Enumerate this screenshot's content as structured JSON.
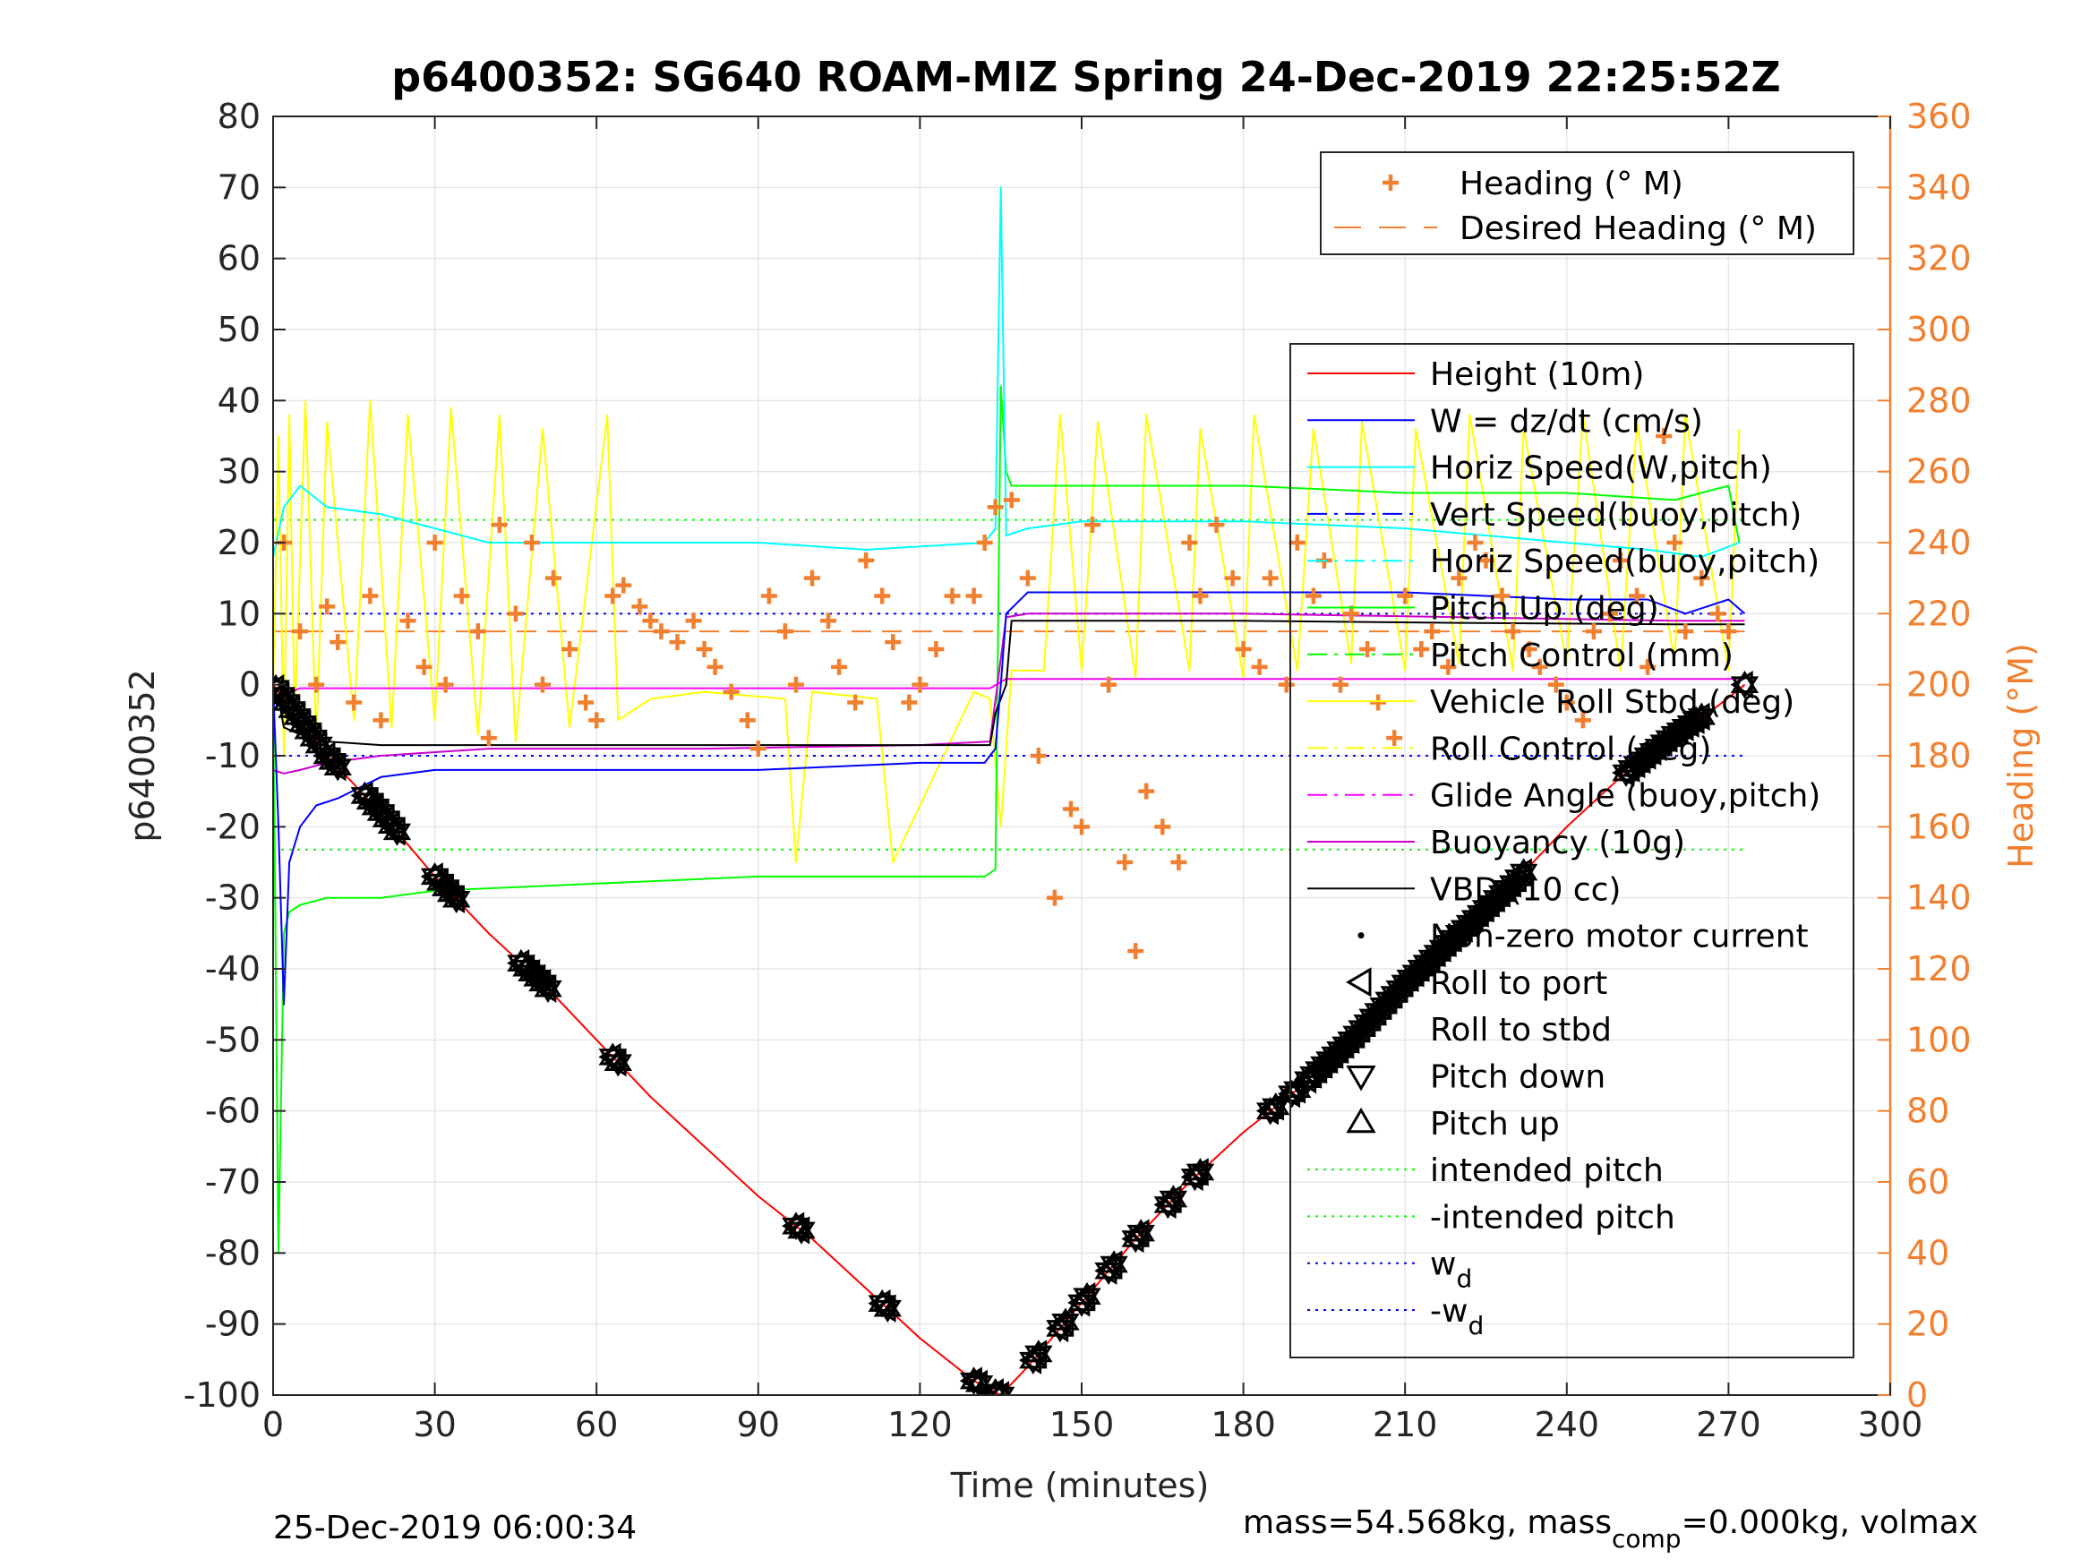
{
  "chart_data": {
    "type": "line",
    "title": "p6400352: SG640 ROAM-MIZ Spring 24-Dec-2019 22:25:52Z",
    "xlabel": "Time (minutes)",
    "ylabel": "p6400352",
    "y2label": "Heading (°M)",
    "xlim": [
      0,
      300
    ],
    "ylim": [
      -100,
      80
    ],
    "y2lim": [
      0,
      360
    ],
    "xticks": [
      0,
      30,
      60,
      90,
      120,
      150,
      180,
      210,
      240,
      270,
      300
    ],
    "yticks": [
      -100,
      -90,
      -80,
      -70,
      -60,
      -50,
      -40,
      -30,
      -20,
      -10,
      0,
      10,
      20,
      30,
      40,
      50,
      60,
      70,
      80
    ],
    "y2ticks": [
      0,
      20,
      40,
      60,
      80,
      100,
      120,
      140,
      160,
      180,
      200,
      220,
      240,
      260,
      280,
      300,
      320,
      340,
      360
    ],
    "grid": true,
    "footer_left": "25-Dec-2019 06:00:34",
    "footer_right_prefix": "mass=54.568kg, mass",
    "footer_right_sub": "comp",
    "footer_right_suffix": "=0.000kg, volmax",
    "colors": {
      "height": "#ff0000",
      "w": "#0000ff",
      "horiz_w": "#00ffff",
      "pitch": "#00ff00",
      "roll": "#ffff00",
      "glide": "#ff00ff",
      "buoy": "#cc00cc",
      "vbd": "#000000",
      "heading": "#f08030",
      "axis_right": "#f08030"
    },
    "legend_heading": [
      {
        "label": "Heading (° M)",
        "marker": "plus",
        "color": "#f08030"
      },
      {
        "label": "Desired Heading (° M)",
        "marker": "dash",
        "color": "#f08030"
      }
    ],
    "legend_main": [
      {
        "label": "Height (10m)",
        "style": "line",
        "color": "#ff0000"
      },
      {
        "label": "W = dz/dt (cm/s)",
        "style": "line",
        "color": "#0000ff"
      },
      {
        "label": "Horiz Speed(W,pitch)",
        "style": "line",
        "color": "#00ffff"
      },
      {
        "label": "Vert Speed(buoy,pitch)",
        "style": "dashdot",
        "color": "#0000ff"
      },
      {
        "label": "Horiz Speed(buoy,pitch)",
        "style": "dashdot",
        "color": "#00ffff"
      },
      {
        "label": "Pitch Up (deg)",
        "style": "line",
        "color": "#00ff00"
      },
      {
        "label": "Pitch Control (mm)",
        "style": "dashdot",
        "color": "#00ff00"
      },
      {
        "label": "Vehicle Roll Stbd (deg)",
        "style": "line",
        "color": "#ffff00"
      },
      {
        "label": "Roll Control (deg)",
        "style": "dashdot",
        "color": "#ffff00"
      },
      {
        "label": "Glide Angle (buoy,pitch)",
        "style": "dashdot",
        "color": "#ff00ff"
      },
      {
        "label": "Buoyancy (10g)",
        "style": "line",
        "color": "#cc00cc"
      },
      {
        "label": "VBD (10 cc)",
        "style": "line",
        "color": "#000000"
      },
      {
        "label": "Non-zero motor current",
        "style": "dot",
        "color": "#000000"
      },
      {
        "label": "Roll to port",
        "style": "tri-left",
        "color": "#000000"
      },
      {
        "label": "Roll to stbd",
        "style": "tri-right",
        "color": "#000000"
      },
      {
        "label": "Pitch down",
        "style": "tri-down",
        "color": "#000000"
      },
      {
        "label": "Pitch up",
        "style": "tri-up",
        "color": "#000000"
      },
      {
        "label": "intended pitch",
        "style": "dotted",
        "color": "#00ff00"
      },
      {
        "label": "-intended pitch",
        "style": "dotted",
        "color": "#00ff00"
      },
      {
        "label": "w",
        "sub": "d",
        "style": "dotted",
        "color": "#0000ff"
      },
      {
        "label": "-w",
        "sub": "d",
        "style": "dotted",
        "color": "#0000ff"
      }
    ],
    "series": [
      {
        "key": "height",
        "x": [
          0,
          2,
          5,
          10,
          20,
          30,
          40,
          50,
          60,
          70,
          80,
          90,
          100,
          110,
          120,
          130,
          135,
          140,
          150,
          160,
          170,
          180,
          190,
          200,
          210,
          220,
          230,
          240,
          250,
          260,
          268,
          273
        ],
        "values": [
          0,
          -2,
          -5,
          -10,
          -18,
          -27,
          -35,
          -42,
          -50,
          -58,
          -65,
          -72,
          -78,
          -85,
          -92,
          -98,
          -100,
          -96,
          -87,
          -78,
          -70,
          -63,
          -57,
          -50,
          -42,
          -35,
          -28,
          -20,
          -13,
          -7,
          -3,
          0
        ]
      },
      {
        "key": "w",
        "x": [
          0,
          1,
          2,
          3,
          5,
          8,
          12,
          20,
          30,
          60,
          90,
          120,
          132,
          134,
          135,
          136,
          140,
          150,
          180,
          210,
          240,
          255,
          262,
          270,
          273
        ],
        "values": [
          0,
          -20,
          -45,
          -25,
          -20,
          -17,
          -16,
          -13,
          -12,
          -12,
          -12,
          -11,
          -11,
          -9,
          0,
          10,
          13,
          13,
          13,
          13,
          12,
          12,
          10,
          12,
          10
        ]
      },
      {
        "key": "horiz_w",
        "x": [
          0,
          2,
          5,
          10,
          20,
          30,
          40,
          60,
          90,
          110,
          132,
          134,
          135,
          136,
          140,
          150,
          180,
          210,
          240,
          255,
          265,
          272
        ],
        "values": [
          18,
          25,
          28,
          25,
          24,
          22,
          20,
          20,
          20,
          19,
          20,
          22,
          70,
          21,
          22,
          23,
          23,
          22,
          20,
          19,
          18,
          20
        ]
      },
      {
        "key": "pitch",
        "x": [
          0,
          1,
          2,
          3,
          5,
          10,
          20,
          30,
          60,
          90,
          120,
          132,
          134,
          135,
          136,
          137,
          140,
          150,
          180,
          210,
          240,
          260,
          270,
          272
        ],
        "values": [
          0,
          -80,
          -35,
          -32,
          -31,
          -30,
          -30,
          -29,
          -28,
          -27,
          -27,
          -27,
          -26,
          42,
          30,
          28,
          28,
          28,
          28,
          27,
          27,
          26,
          28,
          20
        ]
      },
      {
        "key": "vbd",
        "x": [
          0,
          1,
          2,
          5,
          10,
          20,
          40,
          80,
          120,
          133,
          134,
          136,
          137,
          140,
          180,
          220,
          260,
          273
        ],
        "values": [
          0,
          -2,
          -6,
          -7,
          -8,
          -8.5,
          -8.5,
          -8.5,
          -8.5,
          -8.5,
          -4,
          0,
          9,
          9,
          9,
          8.7,
          8.5,
          8.5
        ]
      },
      {
        "key": "buoy",
        "x": [
          0,
          2,
          5,
          10,
          20,
          40,
          80,
          120,
          133,
          136,
          140,
          180,
          220,
          260,
          273
        ],
        "values": [
          -12,
          -12.5,
          -12,
          -11,
          -10,
          -9,
          -9,
          -8.5,
          -8,
          9.5,
          10,
          10,
          9.5,
          9,
          9
        ]
      },
      {
        "key": "glide",
        "x": [
          0,
          5,
          30,
          60,
          90,
          120,
          133,
          136,
          150,
          180,
          210,
          240,
          273
        ],
        "values": [
          -2,
          -0.5,
          -0.5,
          -0.5,
          -0.5,
          -0.5,
          -0.5,
          0.8,
          0.8,
          0.8,
          0.8,
          0.8,
          0.8
        ]
      },
      {
        "key": "roll",
        "x": [
          0,
          1,
          2,
          3,
          4,
          6,
          8,
          10,
          15,
          18,
          22,
          25,
          30,
          33,
          38,
          42,
          45,
          50,
          55,
          62,
          64,
          70,
          80,
          95,
          97,
          100,
          112,
          115,
          130,
          133,
          135,
          137,
          143,
          146,
          150,
          153,
          160,
          162,
          170,
          172,
          180,
          182,
          190,
          193,
          200,
          202,
          210,
          212,
          220,
          222,
          230,
          232,
          240,
          243,
          250,
          253,
          260,
          262,
          270,
          272
        ],
        "values": [
          -1,
          35,
          -10,
          38,
          -5,
          40,
          -8,
          37,
          -5,
          40,
          -6,
          38,
          -5,
          39,
          -7,
          38,
          -8,
          36,
          -6,
          38,
          -5,
          -2,
          -1,
          -2,
          -25,
          -1,
          -2,
          -25,
          -1,
          -2,
          -20,
          2,
          2,
          38,
          2,
          37,
          1,
          38,
          2,
          36,
          1,
          38,
          2,
          36,
          3,
          37,
          2,
          36,
          3,
          38,
          2,
          36,
          3,
          38,
          2,
          37,
          3,
          38,
          2,
          36
        ]
      },
      {
        "key": "heading",
        "x": [
          2,
          5,
          8,
          10,
          12,
          15,
          18,
          20,
          25,
          28,
          30,
          32,
          35,
          38,
          40,
          42,
          45,
          48,
          50,
          52,
          55,
          58,
          60,
          63,
          65,
          68,
          70,
          72,
          75,
          78,
          80,
          82,
          85,
          88,
          90,
          92,
          95,
          97,
          100,
          103,
          105,
          108,
          110,
          113,
          115,
          118,
          120,
          123,
          126,
          130,
          132,
          134,
          137,
          140,
          142,
          145,
          148,
          150,
          152,
          155,
          158,
          160,
          162,
          165,
          168,
          170,
          172,
          175,
          178,
          180,
          183,
          185,
          188,
          190,
          193,
          195,
          198,
          200,
          203,
          205,
          208,
          210,
          213,
          215,
          218,
          220,
          223,
          225,
          228,
          230,
          233,
          235,
          238,
          240,
          243,
          245,
          248,
          250,
          253,
          255,
          258,
          260,
          262,
          265,
          268,
          270
        ],
        "values": [
          240,
          215,
          200,
          222,
          212,
          195,
          225,
          190,
          218,
          205,
          240,
          200,
          225,
          215,
          185,
          245,
          220,
          240,
          200,
          230,
          210,
          195,
          190,
          225,
          228,
          222,
          218,
          215,
          212,
          218,
          210,
          205,
          198,
          190,
          182,
          225,
          215,
          200,
          230,
          218,
          205,
          195,
          235,
          225,
          212,
          195,
          200,
          210,
          225,
          225,
          240,
          250,
          252,
          230,
          180,
          140,
          165,
          160,
          245,
          200,
          150,
          125,
          170,
          160,
          150,
          240,
          225,
          245,
          230,
          210,
          205,
          230,
          200,
          240,
          225,
          235,
          200,
          220,
          210,
          195,
          185,
          225,
          210,
          215,
          205,
          230,
          240,
          235,
          225,
          215,
          210,
          205,
          200,
          195,
          190,
          215,
          220,
          235,
          225,
          205,
          270,
          240,
          215,
          230,
          220,
          215
        ]
      }
    ],
    "desired_heading": 215,
    "reference_lines": {
      "intended_pitch": 23.2,
      "neg_intended_pitch": -23.2,
      "w_d": 10,
      "neg_w_d": -10
    },
    "pitch_markers": {
      "times": [
        0.5,
        1.5,
        2.5,
        3.5,
        4.5,
        5.5,
        6.5,
        7.5,
        8.5,
        10,
        11,
        12,
        17,
        18,
        19,
        20,
        21,
        22,
        23,
        30,
        31,
        32,
        33,
        34,
        46,
        47,
        48,
        49,
        50,
        51,
        63,
        64,
        97,
        98,
        113,
        114,
        130,
        131,
        134,
        135,
        141,
        142,
        146,
        147,
        150,
        151,
        155,
        156,
        160,
        161,
        166,
        167,
        171,
        172,
        185,
        186,
        189,
        190,
        192,
        193,
        194,
        195,
        196,
        197,
        198,
        199,
        200,
        201,
        202,
        203,
        204,
        205,
        206,
        207,
        208,
        209,
        210,
        211,
        212,
        213,
        214,
        215,
        216,
        217,
        218,
        219,
        220,
        221,
        222,
        223,
        224,
        225,
        226,
        227,
        228,
        229,
        230,
        231,
        232,
        251,
        252,
        253,
        254,
        255,
        256,
        257,
        258,
        259,
        260,
        261,
        262,
        263,
        264,
        265,
        273
      ]
    }
  }
}
